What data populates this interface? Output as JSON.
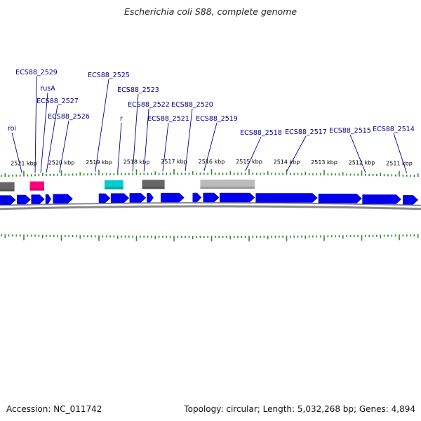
{
  "title": "Escherichia coli S88, complete genome",
  "footer": {
    "accession": "Accession: NC_011742",
    "stats": "Topology: circular; Length: 5,032,268 bp; Genes: 4,894"
  },
  "colors": {
    "cds": "#0000ee",
    "rrna": "#ff007f",
    "trna": "#00cccc",
    "pseudo_dark": "#666666",
    "pseudo_light": "#bbbbbb",
    "label": "#00008b",
    "tick": "#2e8b2e",
    "backbone": "#888888"
  },
  "ticks": [
    {
      "label": "2521 kbp",
      "kbp": 2521
    },
    {
      "label": "2520 kbp",
      "kbp": 2520
    },
    {
      "label": "2519 kbp",
      "kbp": 2519
    },
    {
      "label": "2518 kbp",
      "kbp": 2518
    },
    {
      "label": "2517 kbp",
      "kbp": 2517
    },
    {
      "label": "2516 kbp",
      "kbp": 2516
    },
    {
      "label": "2515 kbp",
      "kbp": 2515
    },
    {
      "label": "2514 kbp",
      "kbp": 2514
    },
    {
      "label": "2513 kbp",
      "kbp": 2513
    },
    {
      "label": "2512 kbp",
      "kbp": 2512
    },
    {
      "label": "2511 kbp",
      "kbp": 2511
    }
  ],
  "gene_labels": [
    {
      "text": "roi",
      "kbp": 2521.05
    },
    {
      "text": "ECS88_2529",
      "kbp": 2520.7
    },
    {
      "text": "rusA",
      "kbp": 2520.55
    },
    {
      "text": "ECS88_2527",
      "kbp": 2520.4
    },
    {
      "text": "ECS88_2526",
      "kbp": 2520.05
    },
    {
      "text": "ECS88_2525",
      "kbp": 2519.1
    },
    {
      "text": "r",
      "kbp": 2518.5
    },
    {
      "text": "ECS88_2523",
      "kbp": 2518.1
    },
    {
      "text": "ECS88_2522",
      "kbp": 2517.8
    },
    {
      "text": "ECS88_2521",
      "kbp": 2517.3
    },
    {
      "text": "ECS88_2520",
      "kbp": 2516.7
    },
    {
      "text": "ECS88_2519",
      "kbp": 2516.2
    },
    {
      "text": "ECS88_2518",
      "kbp": 2515.1
    },
    {
      "text": "ECS88_2517",
      "kbp": 2514.0
    },
    {
      "text": "ECS88_2515",
      "kbp": 2511.9
    },
    {
      "text": "ECS88_2514",
      "kbp": 2510.8
    }
  ],
  "features": [
    {
      "kind": "pseudo_dark",
      "start": 2521.95,
      "end": 2521.25
    },
    {
      "kind": "rrna",
      "start": 2520.84,
      "end": 2520.46
    },
    {
      "kind": "trna",
      "start": 2518.85,
      "end": 2518.35
    },
    {
      "kind": "pseudo_dark",
      "start": 2517.85,
      "end": 2517.25
    },
    {
      "kind": "pseudo_light",
      "start": 2516.3,
      "end": 2514.85
    },
    {
      "kind": "cds",
      "start": 2521.95,
      "end": 2521.22
    },
    {
      "kind": "cds",
      "start": 2521.18,
      "end": 2520.82
    },
    {
      "kind": "cds",
      "start": 2520.8,
      "end": 2520.45
    },
    {
      "kind": "cds",
      "start": 2520.42,
      "end": 2520.28
    },
    {
      "kind": "cds",
      "start": 2520.22,
      "end": 2519.7
    },
    {
      "kind": "cds",
      "start": 2519.0,
      "end": 2518.7
    },
    {
      "kind": "cds",
      "start": 2518.68,
      "end": 2518.2
    },
    {
      "kind": "cds",
      "start": 2518.18,
      "end": 2517.75
    },
    {
      "kind": "cds",
      "start": 2517.72,
      "end": 2517.55
    },
    {
      "kind": "cds",
      "start": 2517.35,
      "end": 2516.73
    },
    {
      "kind": "cds",
      "start": 2516.5,
      "end": 2516.27
    },
    {
      "kind": "cds",
      "start": 2516.22,
      "end": 2515.8
    },
    {
      "kind": "cds",
      "start": 2515.78,
      "end": 2514.85
    },
    {
      "kind": "cds",
      "start": 2514.82,
      "end": 2513.18
    },
    {
      "kind": "cds",
      "start": 2513.15,
      "end": 2512.0
    },
    {
      "kind": "cds",
      "start": 2511.98,
      "end": 2510.95
    },
    {
      "kind": "cds",
      "start": 2510.9,
      "end": 2510.5
    }
  ]
}
